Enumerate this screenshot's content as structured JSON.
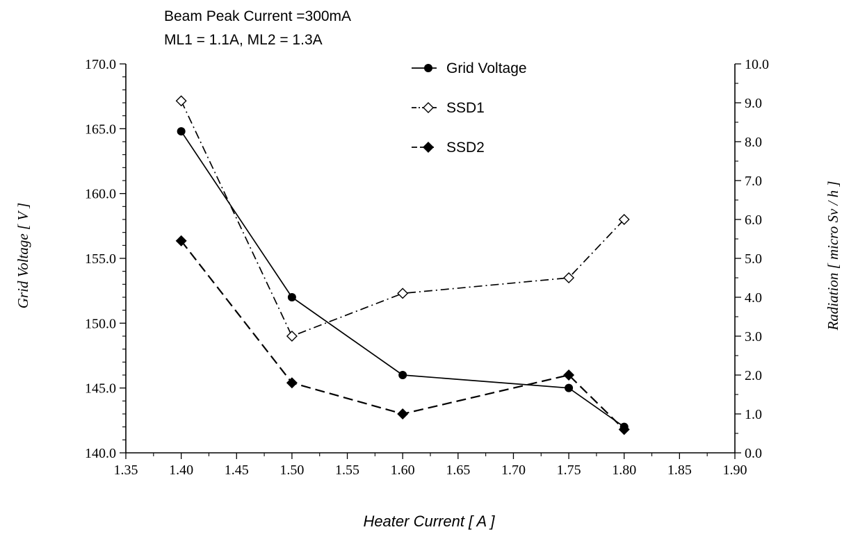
{
  "chart_data": {
    "type": "line",
    "annotations": [
      "Beam Peak Current =300mA",
      "ML1 = 1.1A, ML2 = 1.3A"
    ],
    "xlabel": "Heater Current [ A ]",
    "ylabel_left": "Grid Voltage [ V ]",
    "ylabel_right": "Radiation [ micro Sv / h ]",
    "xlim": [
      1.35,
      1.9
    ],
    "ylim_left": [
      140.0,
      170.0
    ],
    "ylim_right": [
      0.0,
      10.0
    ],
    "x_ticks": [
      "1.35",
      "1.40",
      "1.45",
      "1.50",
      "1.55",
      "1.60",
      "1.65",
      "1.70",
      "1.75",
      "1.80",
      "1.85",
      "1.90"
    ],
    "y_left_ticks": [
      "140.0",
      "145.0",
      "150.0",
      "155.0",
      "160.0",
      "165.0",
      "170.0"
    ],
    "y_right_ticks": [
      "0.0",
      "1.0",
      "2.0",
      "3.0",
      "4.0",
      "5.0",
      "6.0",
      "7.0",
      "8.0",
      "9.0",
      "10.0"
    ],
    "legend_position": "top-center",
    "grid": false,
    "series": [
      {
        "name": "Grid Voltage",
        "axis": "left",
        "marker": "filled-circle",
        "line": "solid",
        "x": [
          1.4,
          1.5,
          1.6,
          1.75,
          1.8
        ],
        "y": [
          164.8,
          152.0,
          146.0,
          145.0,
          142.0
        ]
      },
      {
        "name": "SSD1",
        "axis": "right",
        "marker": "open-diamond",
        "line": "dash-dot",
        "x": [
          1.4,
          1.5,
          1.6,
          1.75,
          1.8
        ],
        "y": [
          9.05,
          3.0,
          4.1,
          4.5,
          6.0
        ]
      },
      {
        "name": "SSD2",
        "axis": "right",
        "marker": "filled-diamond",
        "line": "dashed",
        "x": [
          1.4,
          1.5,
          1.6,
          1.75,
          1.8
        ],
        "y": [
          5.45,
          1.8,
          1.0,
          2.0,
          0.6
        ]
      }
    ]
  }
}
